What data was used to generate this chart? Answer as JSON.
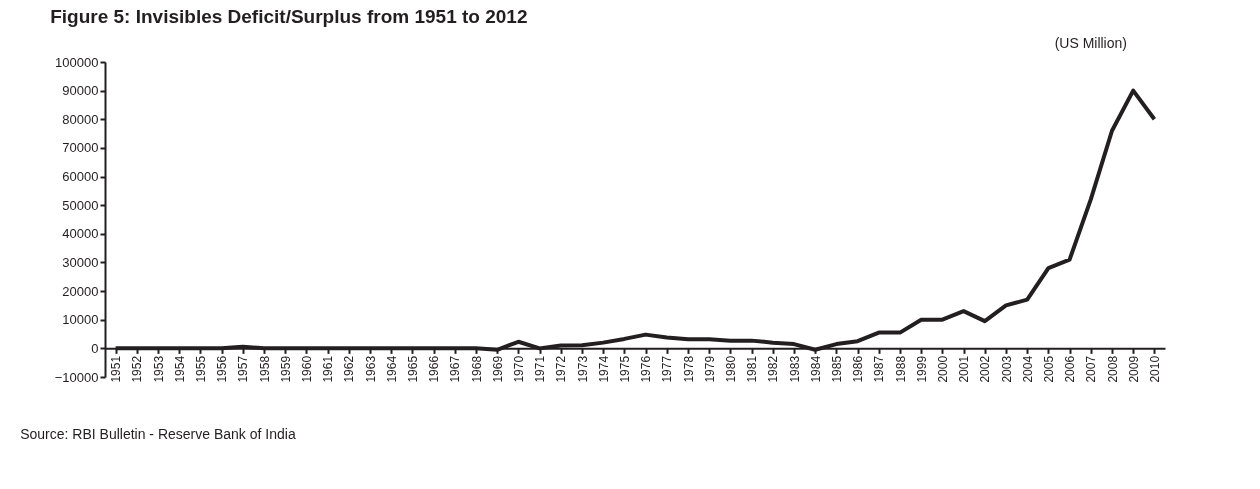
{
  "chart_data": {
    "type": "line",
    "title": "Figure 5: Invisibles Deficit/Surplus from 1951 to 2012",
    "categories": [
      "1951",
      "1952",
      "1953",
      "1954",
      "1955",
      "1956",
      "1957",
      "1958",
      "1959",
      "1960",
      "1961",
      "1962",
      "1963",
      "1964",
      "1965",
      "1966",
      "1967",
      "1968",
      "1969",
      "1970",
      "1971",
      "1972",
      "1973",
      "1974",
      "1975",
      "1976",
      "1977",
      "1978",
      "1979",
      "1980",
      "1981",
      "1982",
      "1983",
      "1984",
      "1985",
      "1986",
      "1987",
      "1988",
      "1999",
      "2000",
      "2001",
      "2002",
      "2003",
      "2004",
      "2005",
      "2006",
      "2007",
      "2008",
      "2009",
      "2010"
    ],
    "series": [
      {
        "color": "#231f20",
        "values": [
          0,
          0,
          0,
          0,
          0,
          0,
          600,
          0,
          0,
          0,
          0,
          0,
          0,
          0,
          0,
          0,
          0,
          0,
          -500,
          2300,
          0,
          1000,
          1100,
          2000,
          3300,
          4800,
          3800,
          3200,
          3200,
          2700,
          2700,
          2000,
          1500,
          -500,
          1500,
          2500,
          5500,
          5500,
          10000,
          10000,
          13000,
          9500,
          15000,
          17000,
          28000,
          31000,
          52000,
          76000,
          90000,
          80000
        ]
      }
    ],
    "ylim": [
      -10000,
      100000
    ],
    "yticks": [
      -10000,
      0,
      10000,
      20000,
      30000,
      40000,
      50000,
      60000,
      70000,
      80000,
      90000,
      100000
    ],
    "grid": false,
    "legend": false,
    "marker": "none",
    "line_style": "solid",
    "annotations": [
      "(US Million)",
      "Source: RBI Bulletin - Reserve Bank of India"
    ]
  }
}
